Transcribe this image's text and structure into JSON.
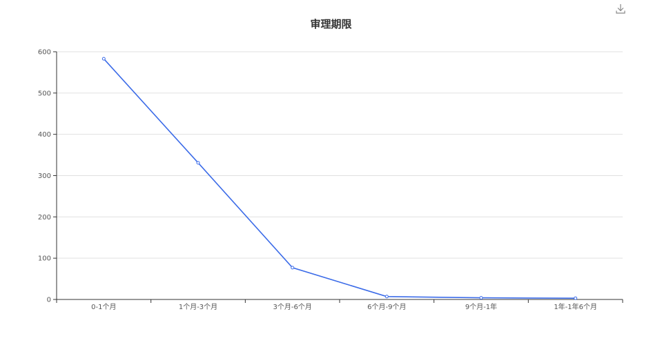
{
  "chart_data": {
    "type": "line",
    "title": "审理期限",
    "categories": [
      "0-1个月",
      "1个月-3个月",
      "3个月-6个月",
      "6个月-9个月",
      "9个月-1年",
      "1年-1年6个月"
    ],
    "series": [
      {
        "values": [
          583,
          331,
          77,
          7,
          4,
          3
        ]
      }
    ],
    "ylim": [
      0,
      600
    ],
    "yticks": [
      0,
      100,
      200,
      300,
      400,
      500,
      600
    ],
    "grid": true,
    "xlabel": "",
    "ylabel": "",
    "line_color": "#3b6be8",
    "grid_color": "#e0e0e0",
    "axis_color": "#333333"
  },
  "toolbox": {
    "download_icon": "download-icon"
  }
}
